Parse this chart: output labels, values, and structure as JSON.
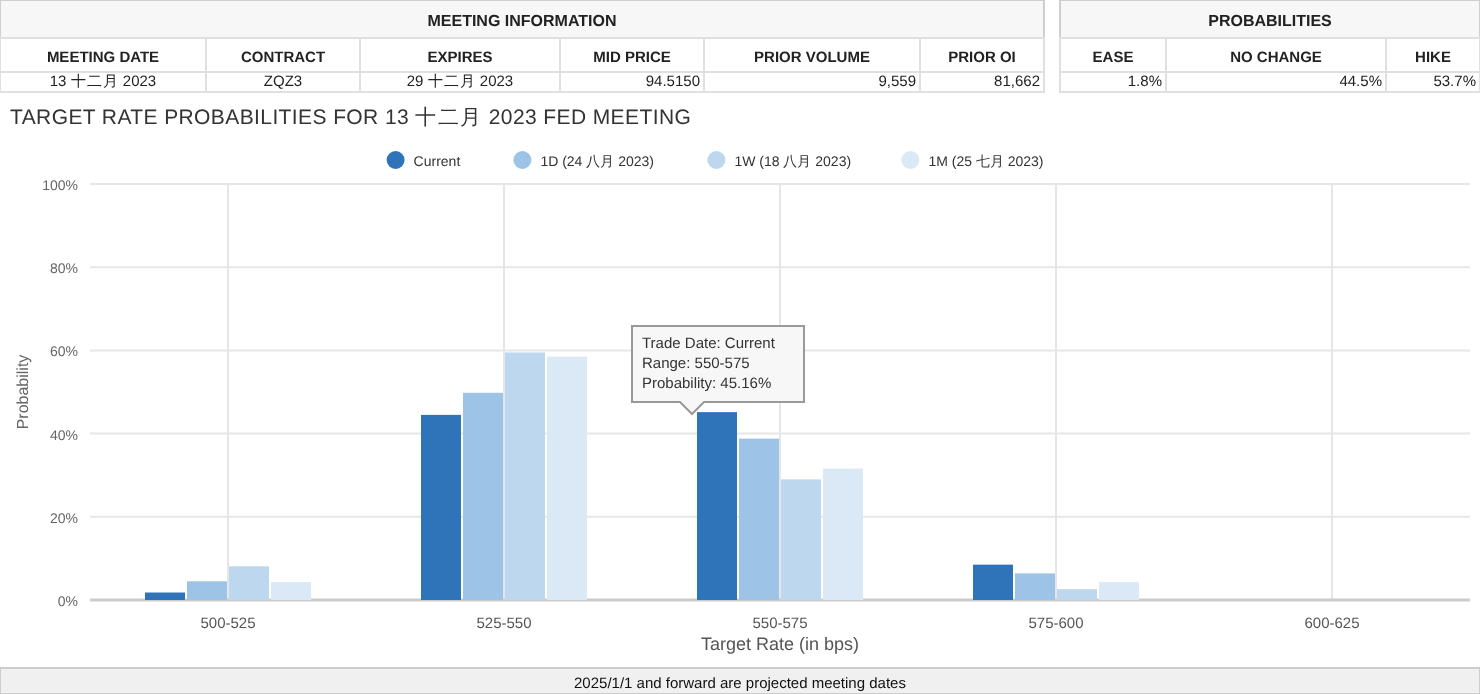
{
  "chart_data": [
    {
      "type": "other",
      "title": "MEETING INFORMATION",
      "annotations": [
        "MEETING DATE",
        "CONTRACT",
        "EXPIRES",
        "MID PRICE",
        "PRIOR VOLUME",
        "PRIOR OI",
        "13 十二月 2023",
        "ZQZ3",
        "29 十二月 2023",
        "94.5150",
        "9,559",
        "81,662"
      ]
    },
    {
      "type": "other",
      "title": "PROBABILITIES",
      "annotations": [
        "EASE",
        "NO CHANGE",
        "HIKE",
        "1.8%",
        "44.5%",
        "53.7%"
      ]
    },
    {
      "type": "bar",
      "title": "TARGET RATE PROBABILITIES FOR 13 十二月 2023 FED MEETING",
      "xlabel": "Target Rate (in bps)",
      "ylabel": "Probability",
      "categories": [
        "500-525",
        "525-550",
        "550-575",
        "575-600",
        "600-625"
      ],
      "series": [
        {
          "name": "Current",
          "color": "#2f73b8",
          "values": [
            1.8,
            44.5,
            45.16,
            8.5,
            0
          ]
        },
        {
          "name": "1D (24 八月 2023)",
          "color": "#9dc3e6",
          "values": [
            4.5,
            49.8,
            38.8,
            6.4,
            0
          ]
        },
        {
          "name": "1W (18 八月 2023)",
          "color": "#bdd7ee",
          "values": [
            8.1,
            59.5,
            29.0,
            2.6,
            0
          ]
        },
        {
          "name": "1M (25 七月 2023)",
          "color": "#dbe9f6",
          "values": [
            4.3,
            58.5,
            31.6,
            4.3,
            0
          ]
        }
      ],
      "ylim": [
        0,
        100
      ],
      "yticks": [
        {
          "value": 0,
          "label": "0%"
        },
        {
          "value": 20,
          "label": "20%"
        },
        {
          "value": 40,
          "label": "40%"
        },
        {
          "value": 60,
          "label": "60%"
        },
        {
          "value": 80,
          "label": "80%"
        },
        {
          "value": 100,
          "label": "100%"
        }
      ],
      "grid": true,
      "legend": "top",
      "annotations": [
        "Trade Date: Current\nRange: 550-575\nProbability: 45.16%",
        "2025/1/1 and forward are projected meeting dates"
      ]
    }
  ]
}
